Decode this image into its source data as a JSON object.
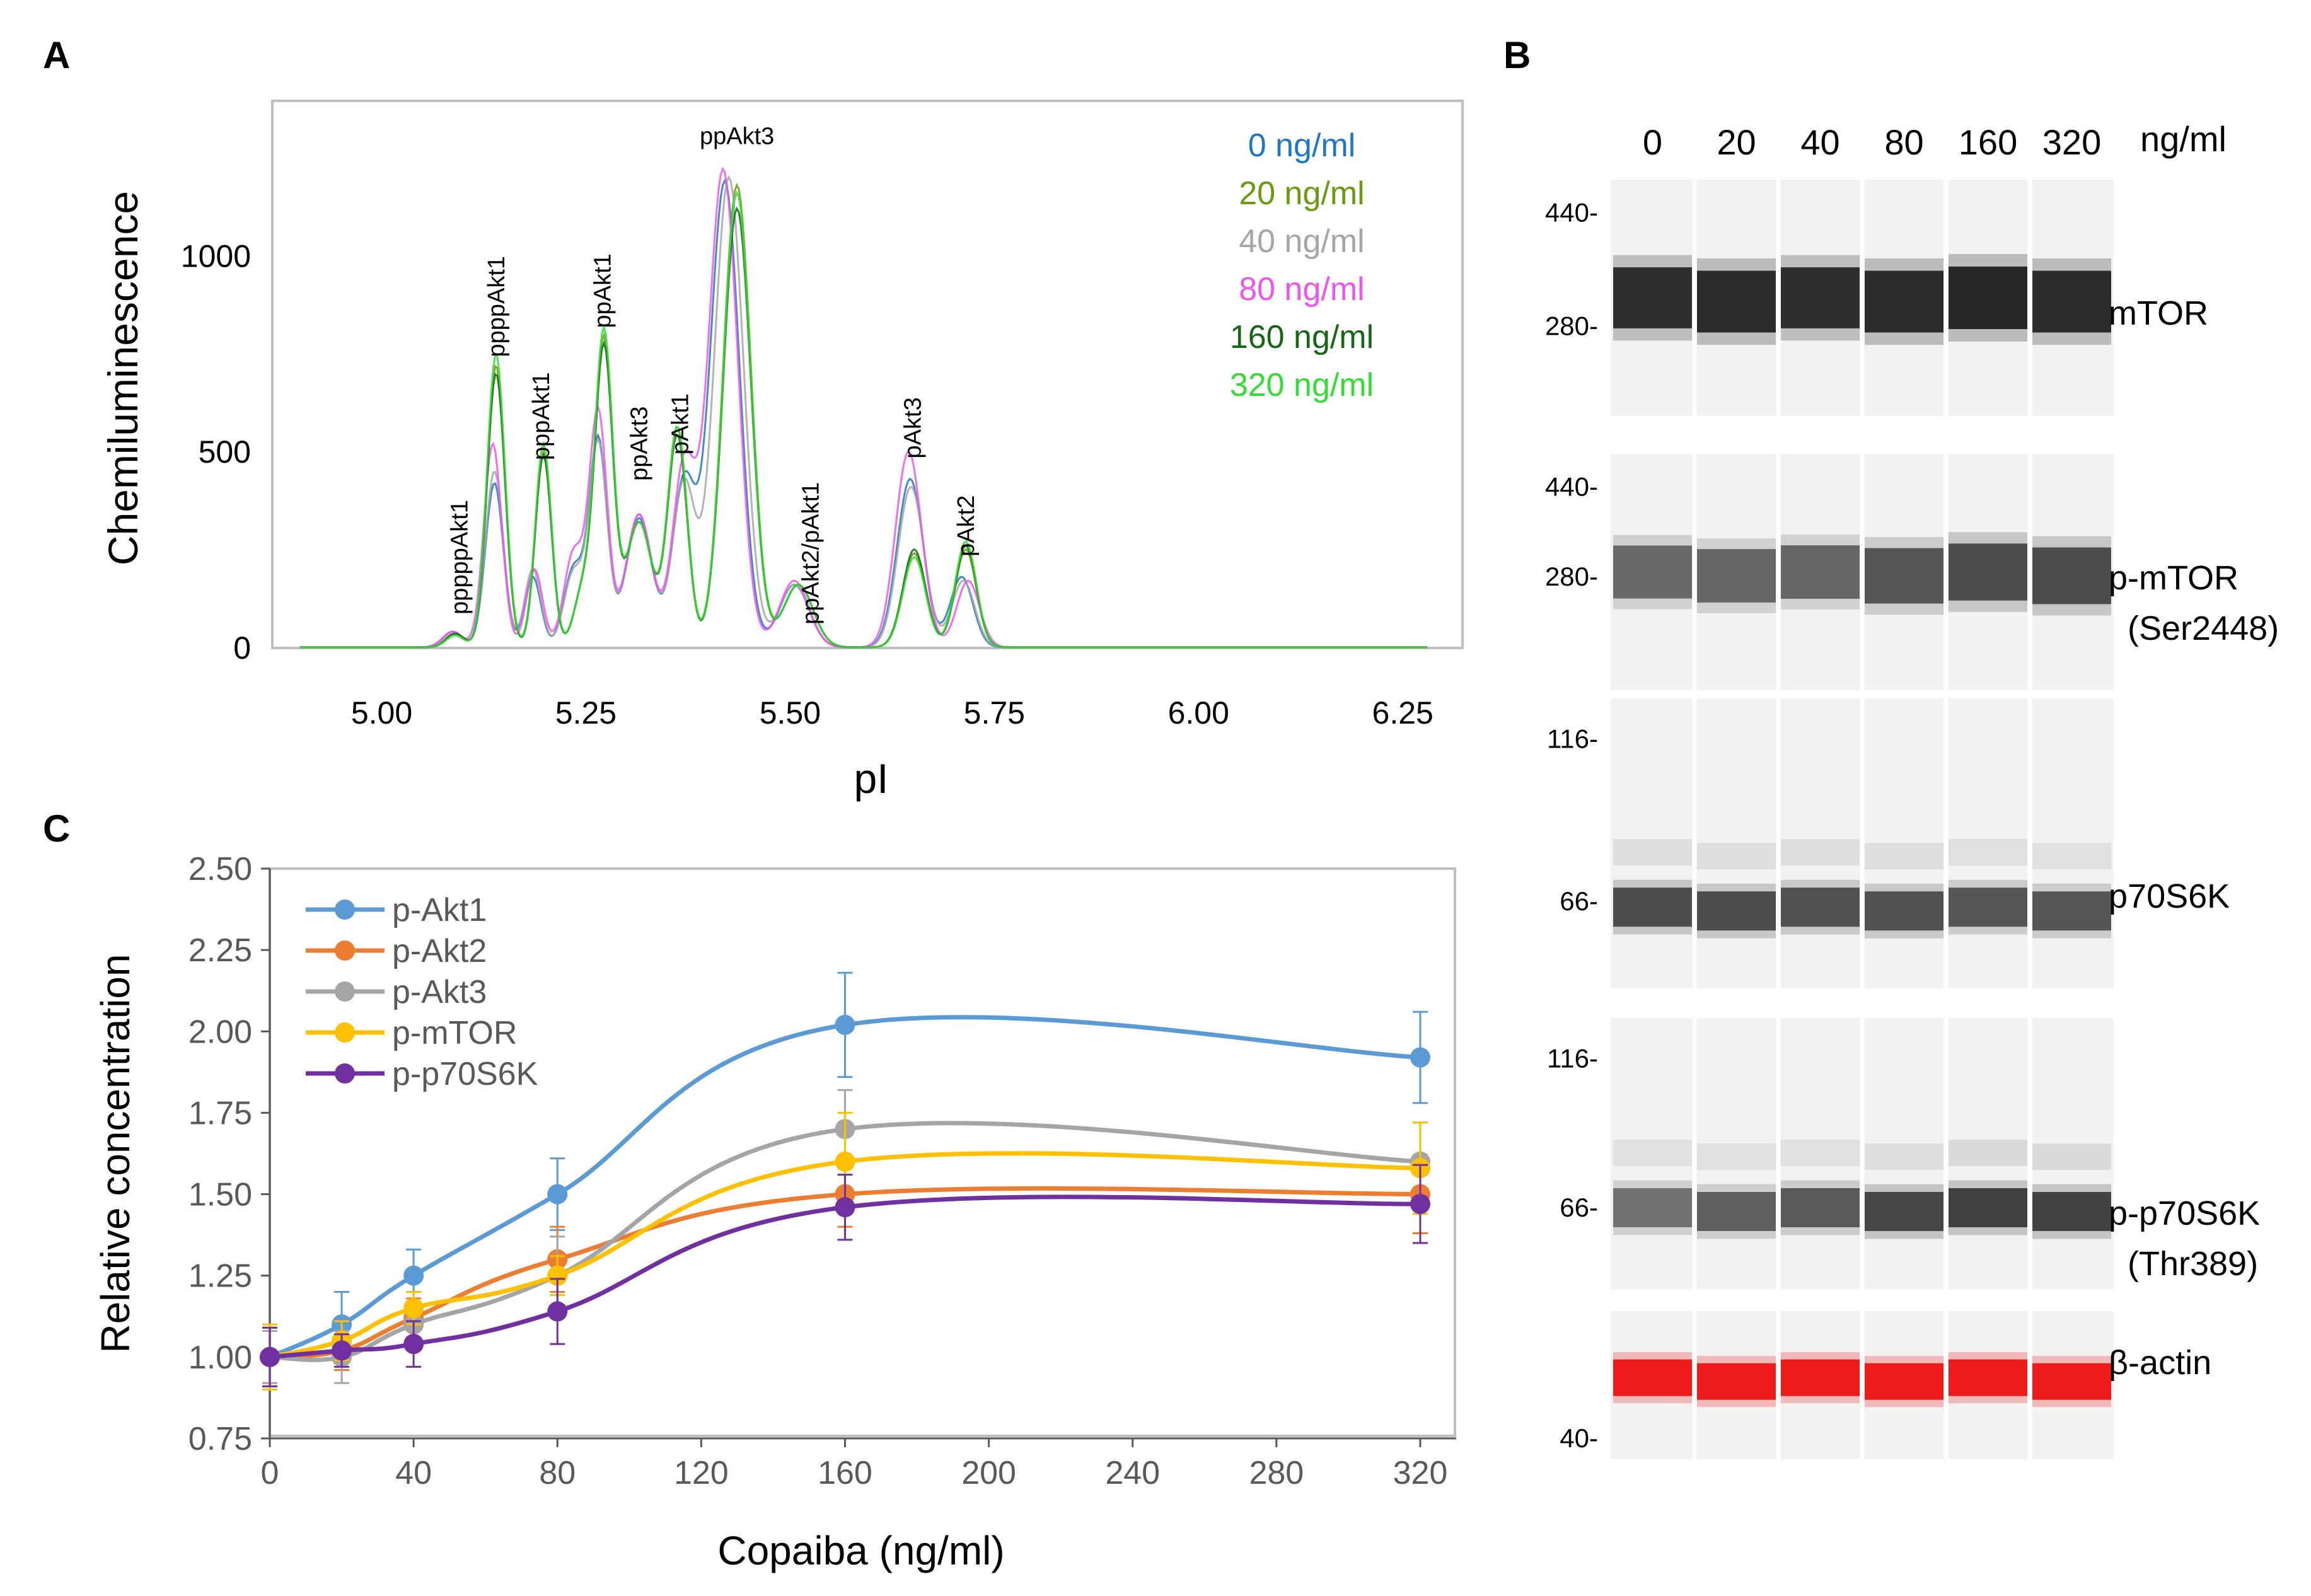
{
  "panels": {
    "a_letter": "A",
    "b_letter": "B",
    "c_letter": "C"
  },
  "colors": {
    "c0": "#1f77c8",
    "c20": "#6a9a10",
    "c40": "#a6a6a6",
    "c80": "#ee55ee",
    "c160": "#146814",
    "c320": "#33dd33",
    "akt1": "#5b9bd5",
    "akt2": "#ed7d31",
    "akt3": "#a5a5a5",
    "mtor": "#ffc000",
    "p70": "#7030a0",
    "axis": "#595959",
    "frame": "#bfbfbf",
    "gel_bg": "#f2f2f2",
    "actin": "#ee1111"
  },
  "chart_data": [
    {
      "id": "A",
      "type": "line",
      "title": "",
      "xlabel": "pI",
      "ylabel": "Chemiluminescence",
      "xlim": [
        4.88,
        6.3
      ],
      "ylim": [
        -5,
        1395
      ],
      "xticks": [
        5.0,
        5.25,
        5.5,
        5.75,
        6.0,
        6.25
      ],
      "xtick_labels": [
        "5.00",
        "5.25",
        "5.50",
        "5.75",
        "6.00",
        "6.25"
      ],
      "yticks": [
        0,
        500,
        1000
      ],
      "ytick_labels": [
        "0",
        "500",
        "1000"
      ],
      "legend_position": "top-right",
      "series": [
        {
          "name": "0 ng/ml",
          "color_key": "c0",
          "peaks": [
            [
              5.087,
              40,
              0.012
            ],
            [
              5.138,
              420,
              0.011
            ],
            [
              5.185,
              180,
              0.01
            ],
            [
              5.235,
              200,
              0.012
            ],
            [
              5.265,
              530,
              0.011
            ],
            [
              5.315,
              330,
              0.016
            ],
            [
              5.37,
              420,
              0.014
            ],
            [
              5.42,
              1190,
              0.018
            ],
            [
              5.505,
              160,
              0.018
            ],
            [
              5.647,
              430,
              0.016
            ],
            [
              5.71,
              180,
              0.014
            ]
          ]
        },
        {
          "name": "20 ng/ml",
          "color_key": "c20",
          "peaks": [
            [
              5.09,
              35,
              0.011
            ],
            [
              5.14,
              720,
              0.011
            ],
            [
              5.198,
              500,
              0.01
            ],
            [
              5.246,
              140,
              0.011
            ],
            [
              5.272,
              780,
              0.011
            ],
            [
              5.315,
              320,
              0.016
            ],
            [
              5.362,
              560,
              0.012
            ],
            [
              5.435,
              1180,
              0.017
            ],
            [
              5.51,
              160,
              0.018
            ],
            [
              5.652,
              240,
              0.014
            ],
            [
              5.715,
              250,
              0.013
            ]
          ]
        },
        {
          "name": "40 ng/ml",
          "color_key": "c40",
          "peaks": [
            [
              5.088,
              35,
              0.012
            ],
            [
              5.138,
              450,
              0.011
            ],
            [
              5.185,
              200,
              0.01
            ],
            [
              5.235,
              190,
              0.012
            ],
            [
              5.265,
              520,
              0.011
            ],
            [
              5.315,
              340,
              0.016
            ],
            [
              5.37,
              420,
              0.014
            ],
            [
              5.425,
              1200,
              0.018
            ],
            [
              5.505,
              160,
              0.018
            ],
            [
              5.648,
              410,
              0.016
            ],
            [
              5.712,
              170,
              0.014
            ]
          ]
        },
        {
          "name": "80 ng/ml",
          "color_key": "c80",
          "peaks": [
            [
              5.087,
              40,
              0.012
            ],
            [
              5.136,
              520,
              0.011
            ],
            [
              5.187,
              200,
              0.01
            ],
            [
              5.235,
              240,
              0.012
            ],
            [
              5.265,
              600,
              0.011
            ],
            [
              5.315,
              340,
              0.016
            ],
            [
              5.37,
              460,
              0.014
            ],
            [
              5.418,
              1220,
              0.018
            ],
            [
              5.505,
              170,
              0.018
            ],
            [
              5.645,
              500,
              0.016
            ],
            [
              5.718,
              170,
              0.014
            ]
          ]
        },
        {
          "name": "160 ng/ml",
          "color_key": "c160",
          "peaks": [
            [
              5.09,
              35,
              0.011
            ],
            [
              5.14,
              700,
              0.011
            ],
            [
              5.198,
              490,
              0.01
            ],
            [
              5.246,
              140,
              0.011
            ],
            [
              5.272,
              760,
              0.011
            ],
            [
              5.315,
              320,
              0.016
            ],
            [
              5.362,
              540,
              0.012
            ],
            [
              5.435,
              1120,
              0.017
            ],
            [
              5.51,
              160,
              0.018
            ],
            [
              5.652,
              250,
              0.014
            ],
            [
              5.715,
              260,
              0.013
            ]
          ]
        },
        {
          "name": "320 ng/ml",
          "color_key": "c320",
          "peaks": [
            [
              5.09,
              30,
              0.011
            ],
            [
              5.14,
              750,
              0.011
            ],
            [
              5.198,
              520,
              0.01
            ],
            [
              5.246,
              140,
              0.011
            ],
            [
              5.272,
              800,
              0.011
            ],
            [
              5.315,
              320,
              0.016
            ],
            [
              5.362,
              560,
              0.012
            ],
            [
              5.435,
              1160,
              0.017
            ],
            [
              5.51,
              160,
              0.018
            ],
            [
              5.652,
              230,
              0.014
            ],
            [
              5.715,
              270,
              0.013
            ]
          ]
        }
      ],
      "annotations": [
        {
          "text": "pppppAkt1",
          "x": 5.105,
          "y": 230,
          "rotate": -90
        },
        {
          "text": "ppppAkt1",
          "x": 5.15,
          "y": 870,
          "rotate": -90
        },
        {
          "text": "pppAkt1",
          "x": 5.205,
          "y": 590,
          "rotate": -90
        },
        {
          "text": "ppAkt1",
          "x": 5.28,
          "y": 910,
          "rotate": -90
        },
        {
          "text": "ppAkt3",
          "x": 5.325,
          "y": 520,
          "rotate": -90
        },
        {
          "text": "pAkt1",
          "x": 5.375,
          "y": 570,
          "rotate": -90
        },
        {
          "text": "ppAkt3",
          "x": 5.435,
          "y": 1285,
          "rotate": 0
        },
        {
          "text": "ppAkt2/pAkt1",
          "x": 5.535,
          "y": 240,
          "rotate": -90
        },
        {
          "text": "pAkt3",
          "x": 5.66,
          "y": 560,
          "rotate": -90
        },
        {
          "text": "pAkt2",
          "x": 5.725,
          "y": 310,
          "rotate": -90
        }
      ]
    },
    {
      "id": "C",
      "type": "line",
      "title": "",
      "xlabel": "Copaiba (ng/ml)",
      "ylabel": "Relative concentration",
      "xlim": [
        0,
        330
      ],
      "ylim": [
        0.75,
        2.5
      ],
      "xticks": [
        0,
        40,
        80,
        120,
        160,
        200,
        240,
        280,
        320
      ],
      "yticks": [
        0.75,
        1.0,
        1.25,
        1.5,
        1.75,
        2.0,
        2.25,
        2.5
      ],
      "ytick_labels": [
        "0.75",
        "1.00",
        "1.25",
        "1.50",
        "1.75",
        "2.00",
        "2.25",
        "2.50"
      ],
      "grid": false,
      "legend_position": "top-left",
      "x": [
        0,
        20,
        40,
        80,
        160,
        320
      ],
      "series": [
        {
          "name": "p-Akt1",
          "color_key": "akt1",
          "values": [
            1.0,
            1.1,
            1.25,
            1.5,
            2.02,
            1.92
          ],
          "errors": [
            0.09,
            0.1,
            0.08,
            0.11,
            0.16,
            0.14
          ]
        },
        {
          "name": "p-Akt2",
          "color_key": "akt2",
          "values": [
            1.0,
            1.02,
            1.12,
            1.3,
            1.5,
            1.5
          ],
          "errors": [
            0.09,
            0.06,
            0.06,
            0.1,
            0.1,
            0.12
          ]
        },
        {
          "name": "p-Akt3",
          "color_key": "akt3",
          "values": [
            1.0,
            1.0,
            1.1,
            1.25,
            1.7,
            1.6
          ],
          "errors": [
            0.08,
            0.08,
            0.07,
            0.12,
            0.12,
            0.12
          ]
        },
        {
          "name": "p-mTOR",
          "color_key": "mtor",
          "values": [
            1.0,
            1.05,
            1.15,
            1.25,
            1.6,
            1.58
          ],
          "errors": [
            0.1,
            0.06,
            0.05,
            0.06,
            0.15,
            0.14
          ]
        },
        {
          "name": "p-p70S6K",
          "color_key": "p70",
          "values": [
            1.0,
            1.02,
            1.04,
            1.14,
            1.46,
            1.47
          ],
          "errors": [
            0.09,
            0.05,
            0.07,
            0.1,
            0.1,
            0.12
          ]
        }
      ]
    },
    {
      "id": "B",
      "type": "table",
      "lane_labels": [
        "0",
        "20",
        "40",
        "80",
        "160",
        "320"
      ],
      "unit_label": "ng/ml",
      "blots": [
        {
          "label": "mTOR",
          "sublabel": "",
          "mw_labels": [
            "440-",
            "280-"
          ],
          "intensity": [
            0.92,
            0.95,
            0.92,
            0.95,
            0.98,
            0.95
          ],
          "band_pos": 0.5,
          "ladder": [
            0.14,
            0.62
          ]
        },
        {
          "label": "p-mTOR",
          "sublabel": "(Ser2448)",
          "mw_labels": [
            "440-",
            "280-"
          ],
          "intensity": [
            0.6,
            0.62,
            0.62,
            0.7,
            0.76,
            0.75
          ],
          "band_pos": 0.5,
          "ladder": [
            0.14,
            0.52
          ]
        },
        {
          "label": "p70S6K",
          "sublabel": "",
          "mw_labels": [
            "116-",
            "66-"
          ],
          "intensity": [
            0.75,
            0.75,
            0.72,
            0.72,
            0.7,
            0.7
          ],
          "band_pos": 0.72,
          "ladder": [
            0.14,
            0.7
          ]
        },
        {
          "label": "p-p70S6K",
          "sublabel": "(Thr389)",
          "mw_labels": [
            "116-",
            "66-"
          ],
          "intensity": [
            0.55,
            0.65,
            0.68,
            0.78,
            0.82,
            0.8
          ],
          "band_pos": 0.7,
          "ladder": [
            0.15,
            0.7
          ]
        },
        {
          "label": "β-actin",
          "sublabel": "",
          "mw_labels": [
            "40-"
          ],
          "intensity": [
            1,
            1,
            1,
            1,
            1,
            1
          ],
          "band_pos": 0.45,
          "ladder": [
            0.86
          ],
          "red": true
        }
      ]
    }
  ]
}
